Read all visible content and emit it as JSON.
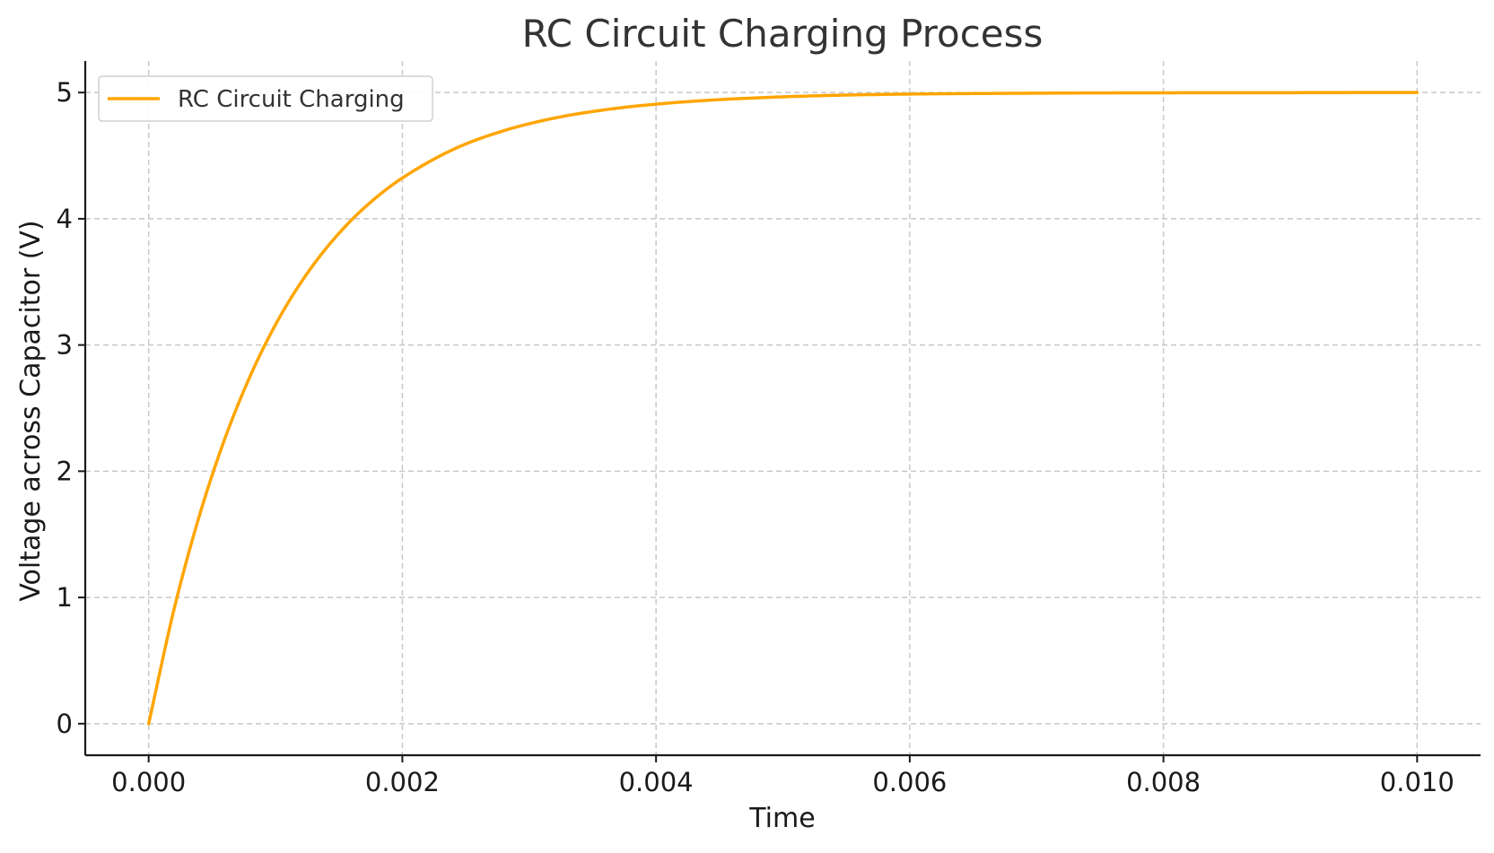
{
  "chart_data": {
    "type": "line",
    "title": "RC Circuit Charging Process",
    "xlabel": "Time",
    "ylabel": "Voltage across Capacitor (V)",
    "xlim": [
      -0.0005,
      0.0105
    ],
    "ylim": [
      -0.25,
      5.25
    ],
    "xticks": [
      0.0,
      0.002,
      0.004,
      0.006,
      0.008,
      0.01
    ],
    "xtick_labels": [
      "0.000",
      "0.002",
      "0.004",
      "0.006",
      "0.008",
      "0.010"
    ],
    "yticks": [
      0,
      1,
      2,
      3,
      4,
      5
    ],
    "ytick_labels": [
      "0",
      "1",
      "2",
      "3",
      "4",
      "5"
    ],
    "grid": true,
    "legend_position": "top-left",
    "series": [
      {
        "name": "RC Circuit Charging",
        "color": "#FFA500",
        "x": [
          0.0,
          0.0002,
          0.0004,
          0.0006,
          0.0008,
          0.001,
          0.0012,
          0.0014,
          0.0016,
          0.0018,
          0.002,
          0.0024,
          0.0028,
          0.0032,
          0.0036,
          0.004,
          0.0045,
          0.005,
          0.0055,
          0.006,
          0.0065,
          0.007,
          0.0075,
          0.008,
          0.0085,
          0.009,
          0.0095,
          0.01
        ],
        "y": [
          0.0,
          0.906,
          1.648,
          2.256,
          2.753,
          3.161,
          3.494,
          3.767,
          3.991,
          4.174,
          4.323,
          4.549,
          4.698,
          4.798,
          4.864,
          4.908,
          4.944,
          4.966,
          4.98,
          4.988,
          4.992,
          4.995,
          4.997,
          4.998,
          4.999,
          4.999,
          5.0,
          5.0
        ]
      }
    ]
  }
}
